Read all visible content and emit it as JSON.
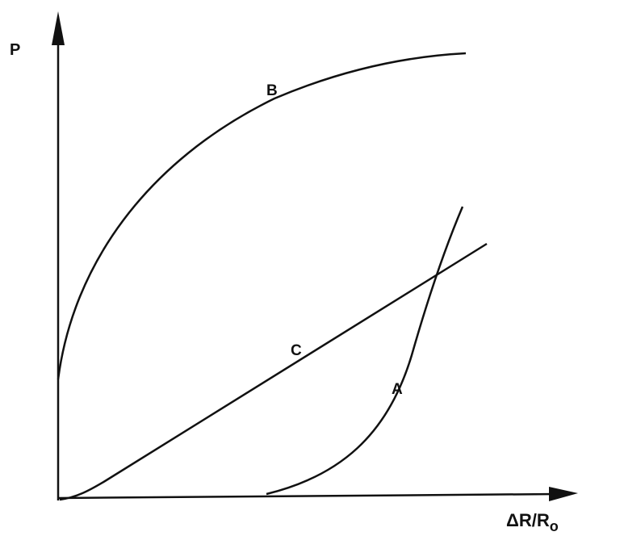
{
  "diagram": {
    "y_axis_label": "P",
    "x_axis_label": "ΔR/R",
    "x_axis_label_subscript": "o",
    "curves": [
      {
        "label": "A"
      },
      {
        "label": "B"
      },
      {
        "label": "C"
      }
    ],
    "line_color": "#111111"
  }
}
